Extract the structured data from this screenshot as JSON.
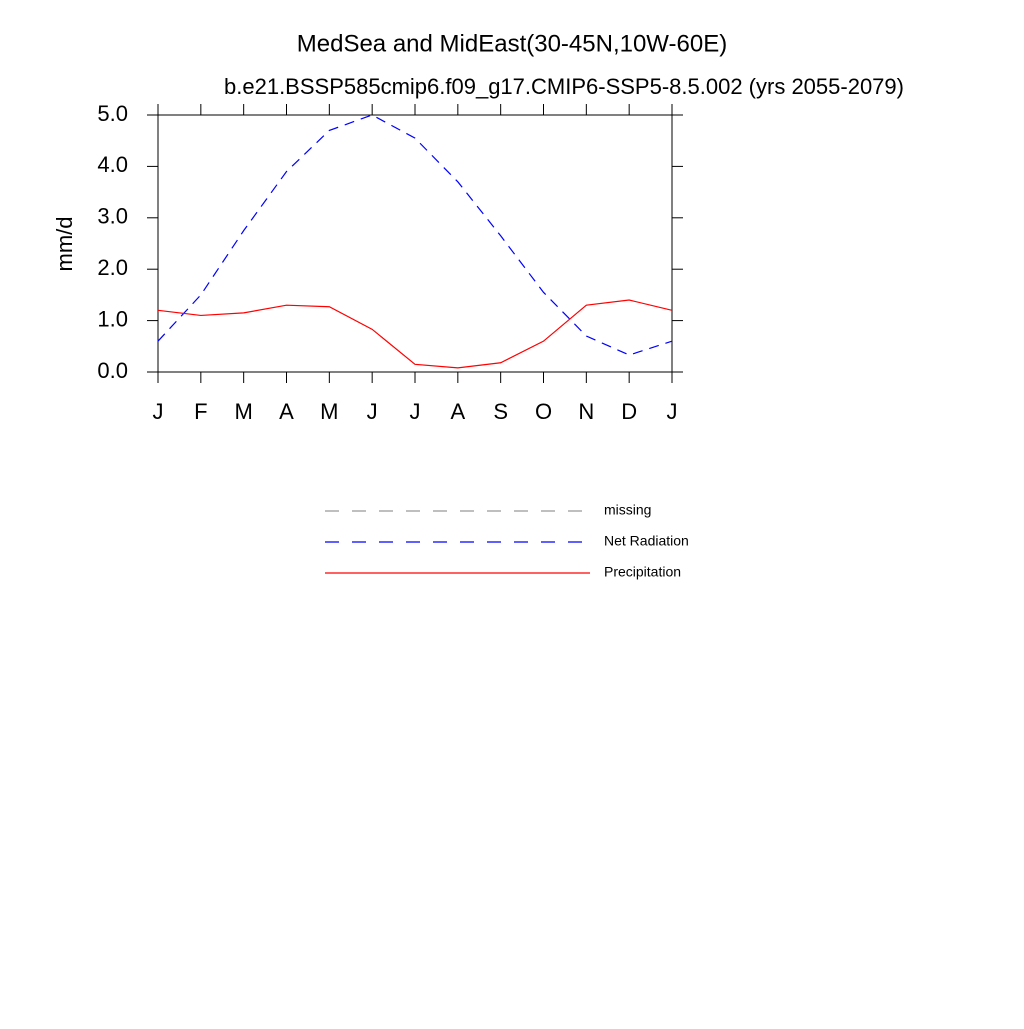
{
  "chart_data": {
    "type": "line",
    "title": "MedSea and MidEast(30-45N,10W-60E)",
    "subtitle": "b.e21.BSSP585cmip6.f09_g17.CMIP6-SSP5-8.5.002 (yrs 2055-2079)",
    "y_label": "mm/d",
    "categories": [
      "J",
      "F",
      "M",
      "A",
      "M",
      "J",
      "J",
      "A",
      "S",
      "O",
      "N",
      "D",
      "J"
    ],
    "ylim": [
      0,
      5
    ],
    "yticks": [
      {
        "value": 0,
        "label": "0.0"
      },
      {
        "value": 1,
        "label": "1.0"
      },
      {
        "value": 2,
        "label": "2.0"
      },
      {
        "value": 3,
        "label": "3.0"
      },
      {
        "value": 4,
        "label": "4.0"
      },
      {
        "value": 5,
        "label": "5.0"
      }
    ],
    "series": [
      {
        "name": "missing",
        "color": "#999999",
        "dash": true,
        "values": [
          null,
          null,
          null,
          null,
          null,
          null,
          null,
          null,
          null,
          null,
          null,
          null,
          null
        ]
      },
      {
        "name": "Net Radiation",
        "color": "#0000ff",
        "dash": true,
        "values": [
          0.6,
          1.5,
          2.75,
          3.9,
          4.7,
          5.0,
          4.55,
          3.7,
          2.65,
          1.55,
          0.7,
          0.33,
          0.6
        ]
      },
      {
        "name": "Precipitation",
        "color": "#ff0000",
        "dash": false,
        "values": [
          1.2,
          1.1,
          1.15,
          1.3,
          1.27,
          0.83,
          0.15,
          0.08,
          0.18,
          0.6,
          1.3,
          1.4,
          1.2
        ]
      }
    ]
  }
}
